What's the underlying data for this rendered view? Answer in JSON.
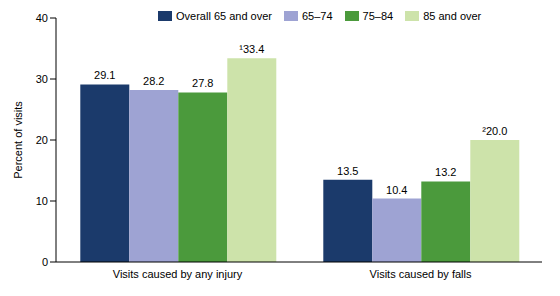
{
  "chart_data": {
    "type": "bar",
    "categories": [
      "Visits caused by any injury",
      "Visits caused by falls"
    ],
    "series": [
      {
        "name": "Overall 65 and over",
        "color": "#1b3a6b",
        "values": [
          29.1,
          13.5
        ]
      },
      {
        "name": "65–74",
        "color": "#9ea3d3",
        "values": [
          28.2,
          10.4
        ]
      },
      {
        "name": "75–84",
        "color": "#4b9a3c",
        "values": [
          27.8,
          13.2
        ]
      },
      {
        "name": "85 and over",
        "color": "#cde3aa",
        "values": [
          33.4,
          20.0
        ],
        "value_labels": [
          "¹33.4",
          "²20.0"
        ]
      }
    ],
    "y_label": "Percent of visits",
    "ylim": [
      0,
      40
    ],
    "yticks": [
      0,
      10,
      20,
      30,
      40
    ],
    "grid": false,
    "legend": "top",
    "data_labels": true
  }
}
